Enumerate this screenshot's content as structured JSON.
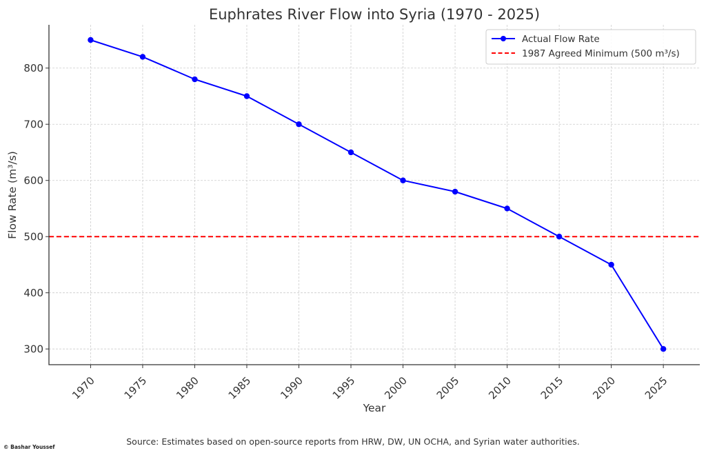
{
  "chart_data": {
    "type": "line",
    "title": "Euphrates River Flow into Syria (1970 - 2025)",
    "xlabel": "Year",
    "ylabel": "Flow Rate (m³/s)",
    "x": [
      1970,
      1975,
      1980,
      1985,
      1990,
      1995,
      2000,
      2005,
      2010,
      2015,
      2020,
      2025
    ],
    "x_tick_labels": [
      "1970",
      "1975",
      "1980",
      "1985",
      "1990",
      "1995",
      "2000",
      "2005",
      "2010",
      "2015",
      "2020",
      "2025"
    ],
    "x_tick_rotation_deg": 45,
    "xlim": [
      1966,
      2028.5
    ],
    "y_ticks": [
      300,
      400,
      500,
      600,
      700,
      800
    ],
    "y_tick_labels": [
      "300",
      "400",
      "500",
      "600",
      "700",
      "800"
    ],
    "ylim": [
      272,
      877
    ],
    "grid": true,
    "legend_position": "top-right",
    "series": [
      {
        "name": "Actual Flow Rate",
        "type": "line-marker",
        "color": "#0000ff",
        "values": [
          850,
          820,
          780,
          750,
          700,
          650,
          600,
          580,
          550,
          500,
          450,
          300
        ]
      }
    ],
    "reference_lines": [
      {
        "name": "1987 Agreed Minimum (500 m³/s)",
        "orientation": "horizontal",
        "value": 500,
        "color": "#ff0000",
        "style": "dashed"
      }
    ]
  },
  "footer": {
    "source": "Source: Estimates based on open-source reports from HRW, DW, UN OCHA, and Syrian water authorities.",
    "credit": "© Bashar Youssef"
  }
}
